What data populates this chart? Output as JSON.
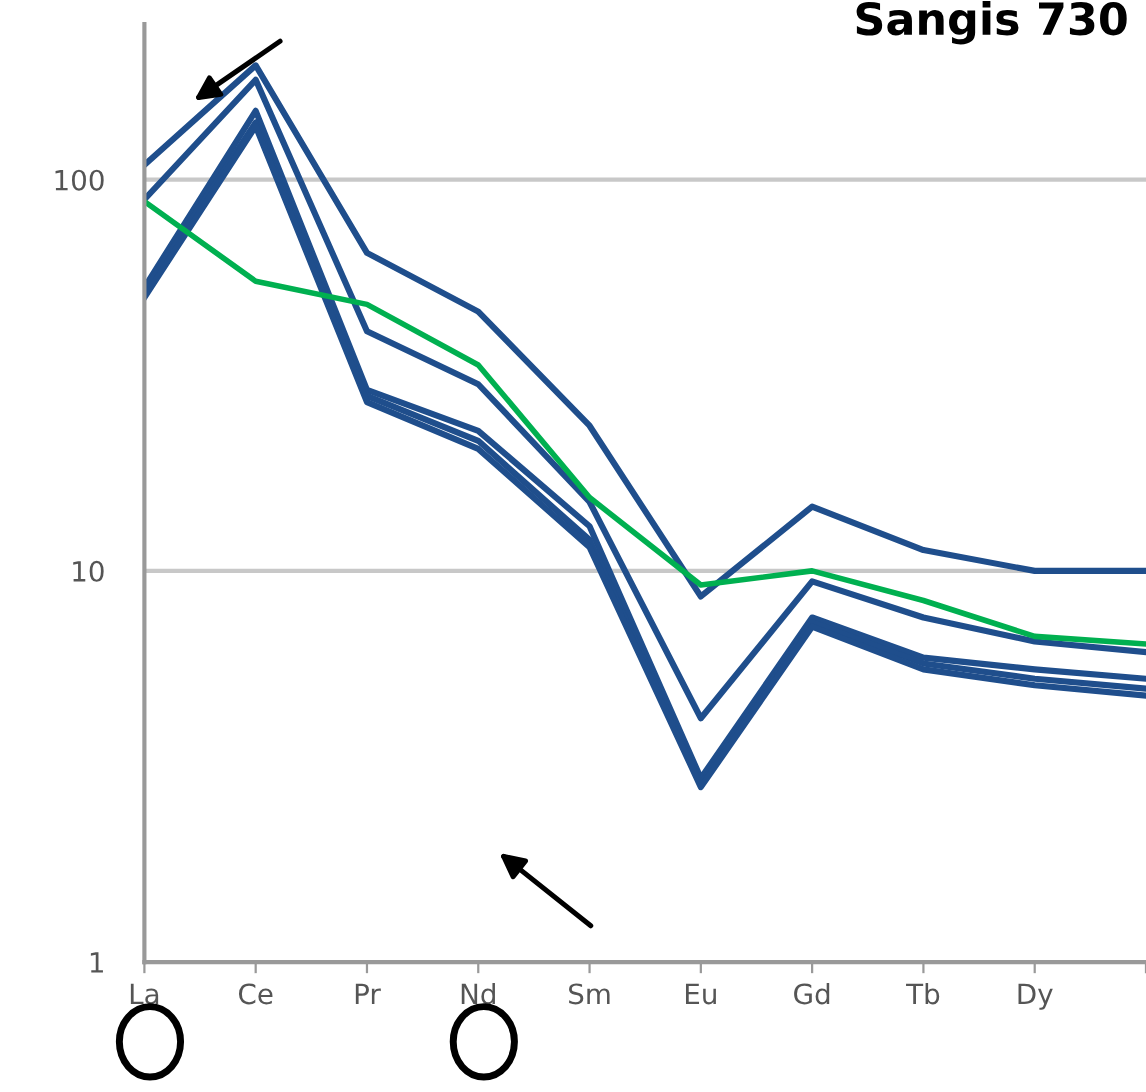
{
  "chart_data": {
    "type": "line",
    "title": "Sangis 730",
    "categories": [
      "La",
      "Ce",
      "Pr",
      "Nd",
      "Sm",
      "Eu",
      "Gd",
      "Tb",
      "Dy",
      null
    ],
    "series": [
      {
        "color": "#1f4e8c",
        "values": [
          109,
          196,
          65,
          46,
          23.5,
          8.6,
          14.6,
          11.3,
          10,
          10
        ]
      },
      {
        "color": "#1f4e8c",
        "values": [
          89,
          180,
          41,
          30,
          15,
          4.2,
          9.4,
          7.6,
          6.6,
          6.2
        ]
      },
      {
        "color": "#1f4e8c",
        "values": [
          53,
          150,
          29,
          22.8,
          13,
          2.95,
          7.6,
          6.0,
          5.6,
          5.3
        ]
      },
      {
        "color": "#1f4e8c",
        "values": [
          52,
          140,
          28,
          21.5,
          12,
          2.85,
          7.4,
          5.8,
          5.3,
          5.0
        ]
      },
      {
        "color": "#1f4e8c",
        "values": [
          50,
          137,
          27,
          20.5,
          11.5,
          2.8,
          7.2,
          5.6,
          5.1,
          4.8
        ]
      },
      {
        "color": "#00b050",
        "values": [
          88,
          55,
          48,
          33.6,
          15.4,
          9.2,
          10,
          8.4,
          6.8,
          6.5
        ]
      }
    ],
    "log": "y",
    "ylim": [
      1,
      250
    ],
    "yticks": [
      1,
      10,
      100
    ],
    "grid": "y",
    "marker": "none",
    "line_style": "solid",
    "legend": false
  }
}
